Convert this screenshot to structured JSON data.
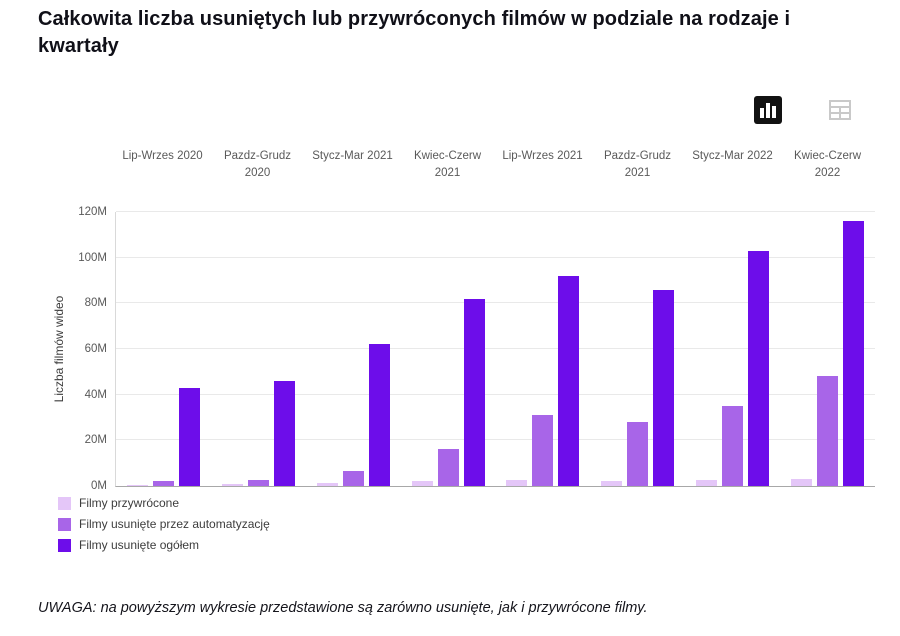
{
  "header": {
    "title": "Całkowita liczba usuniętych lub przywróconych filmów w podziale na rodzaje i kwartały"
  },
  "toolbar": {
    "bar_chart_view": "wykres słupkowy",
    "table_view": "tabela"
  },
  "chart_data": {
    "type": "bar",
    "title": "Całkowita liczba usuniętych lub przywróconych filmów w podziale na rodzaje i kwartały",
    "xlabel": "",
    "ylabel": "Liczba filmów wideo",
    "unit": "M",
    "ylim": [
      0,
      120
    ],
    "grid": true,
    "legend_position": "bottom-left",
    "y_ticks": [
      "0M",
      "20M",
      "40M",
      "60M",
      "80M",
      "100M",
      "120M"
    ],
    "categories": [
      "Lip-Wrzes 2020",
      "Pazdz-Grudz 2020",
      "Stycz-Mar 2021",
      "Kwiec-Czerw 2021",
      "Lip-Wrzes 2021",
      "Pazdz-Grudz 2021",
      "Stycz-Mar 2022",
      "Kwiec-Czerw 2022"
    ],
    "series": [
      {
        "name": "Filmy przywrócone",
        "key": "przywrocone",
        "color": "#e4c6f8",
        "values": [
          0.5,
          1,
          1.5,
          2,
          2.5,
          2,
          2.5,
          3
        ]
      },
      {
        "name": "Filmy usunięte przez automatyzację",
        "key": "automatyzacja",
        "color": "#a865e8",
        "values": [
          2,
          2.5,
          6.5,
          16,
          31,
          28,
          35,
          48
        ]
      },
      {
        "name": "Filmy usunięte ogółem",
        "key": "ogolem",
        "color": "#6d0dea",
        "values": [
          43,
          46,
          62,
          82,
          92,
          86,
          103,
          116
        ]
      }
    ]
  },
  "footnote": "UWAGA: na powyższym wykresie przedstawione są zarówno usunięte, jak i przywrócone filmy."
}
